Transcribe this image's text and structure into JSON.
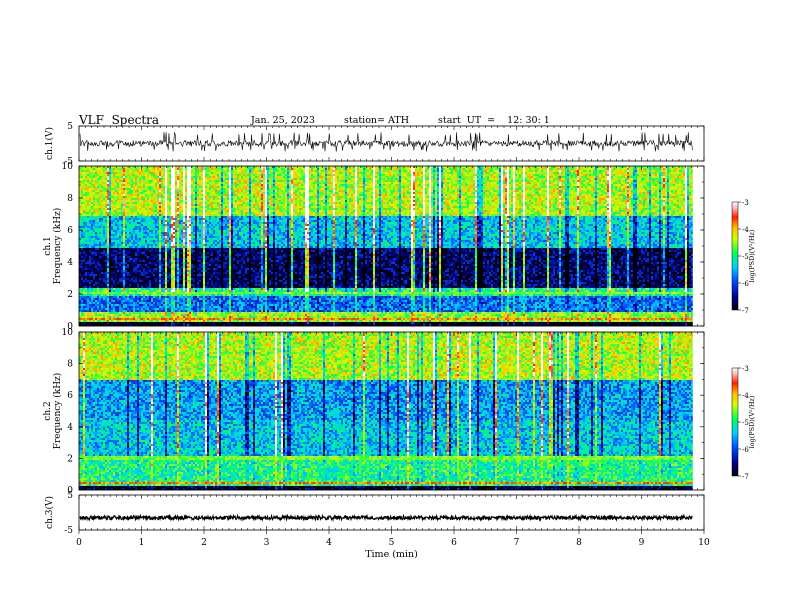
{
  "header": {
    "title": "VLF  Spectra",
    "date": "Jan. 25, 2023",
    "station": "station= ATH",
    "start": "start  UT  =    12: 30: 1"
  },
  "chart_data": [
    {
      "type": "line",
      "name": "ch1-waveform",
      "ylabel": "ch.1(V)",
      "xlim": [
        0,
        10
      ],
      "ylim": [
        -5,
        5
      ],
      "yticks": [
        5,
        -5
      ],
      "baseline": 0,
      "range_shown": [
        -1.2,
        2.4
      ]
    },
    {
      "type": "heatmap",
      "name": "ch1-spectrogram",
      "ylabel": "ch.1\nFrequency (kHz)",
      "xlim": [
        0,
        10
      ],
      "ylim": [
        0,
        10
      ],
      "yticks": [
        0,
        2,
        4,
        6,
        8,
        10
      ],
      "data_xmax": 9.82,
      "colorbar": {
        "label": "log(PSD)(V²/Hz)",
        "range": [
          -7,
          -3
        ],
        "ticks": [
          -3,
          -4,
          -5,
          -6,
          -7
        ]
      },
      "bands_khz": [
        {
          "from": 0,
          "to": 0.3,
          "level": -7
        },
        {
          "from": 0.3,
          "to": 0.9,
          "level": -4.5
        },
        {
          "from": 0.9,
          "to": 2,
          "level": -5.8
        },
        {
          "from": 2,
          "to": 2.4,
          "level": -5
        },
        {
          "from": 2.4,
          "to": 5,
          "level": -6.6
        },
        {
          "from": 5,
          "to": 7,
          "level": -5.4
        },
        {
          "from": 7,
          "to": 10,
          "level": -4.4
        }
      ]
    },
    {
      "type": "heatmap",
      "name": "ch2-spectrogram",
      "ylabel": "ch.2\nFrequency (kHz)",
      "xlim": [
        0,
        10
      ],
      "ylim": [
        0,
        10
      ],
      "yticks": [
        0,
        2,
        4,
        6,
        8,
        10
      ],
      "data_xmax": 9.82,
      "colorbar": {
        "label": "log(PSD)(V²/Hz)",
        "range": [
          -7,
          -3
        ],
        "ticks": [
          -3,
          -4,
          -5,
          -6,
          -7
        ]
      },
      "bands_khz": [
        {
          "from": 0,
          "to": 0.3,
          "level": -6.8
        },
        {
          "from": 0.3,
          "to": 2.2,
          "level": -5
        },
        {
          "from": 2.2,
          "to": 4.5,
          "level": -5.4
        },
        {
          "from": 4.5,
          "to": 7,
          "level": -5.6
        },
        {
          "from": 7,
          "to": 10,
          "level": -4.4
        }
      ]
    },
    {
      "type": "line",
      "name": "ch3-waveform",
      "ylabel": "ch.3(V)",
      "xlim": [
        0,
        10
      ],
      "ylim": [
        -5,
        5
      ],
      "yticks": [
        5,
        -5
      ],
      "baseline": -1.5,
      "range_shown": [
        -1.8,
        -1.2
      ]
    }
  ],
  "x_axis": {
    "label": "Time  (min)",
    "ticks": [
      "0",
      "1",
      "2",
      "3",
      "4",
      "5",
      "6",
      "7",
      "8",
      "9",
      "10"
    ]
  }
}
